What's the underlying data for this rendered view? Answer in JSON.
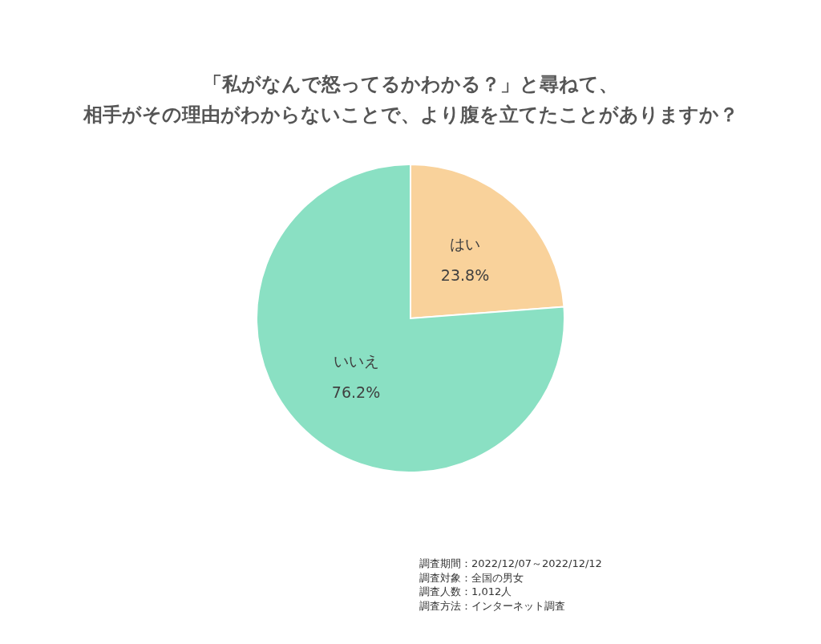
{
  "chart_data": {
    "type": "pie",
    "title": "「私がなんで怒ってるかわかる？」と尋ねて、相手がその理由がわからないことで、より腹を立てたことがありますか？",
    "categories": [
      "はい",
      "いいえ"
    ],
    "values": [
      23.8,
      76.2
    ],
    "colors": [
      "#f9d29b",
      "#8ae0c3"
    ],
    "value_labels": [
      "23.8%",
      "76.2%"
    ],
    "annotations": [
      "調査期間：2022/12/07～2022/12/12",
      "調査対象：全国の男女",
      "調査人数：1,012人",
      "調査方法：インターネット調査"
    ]
  }
}
